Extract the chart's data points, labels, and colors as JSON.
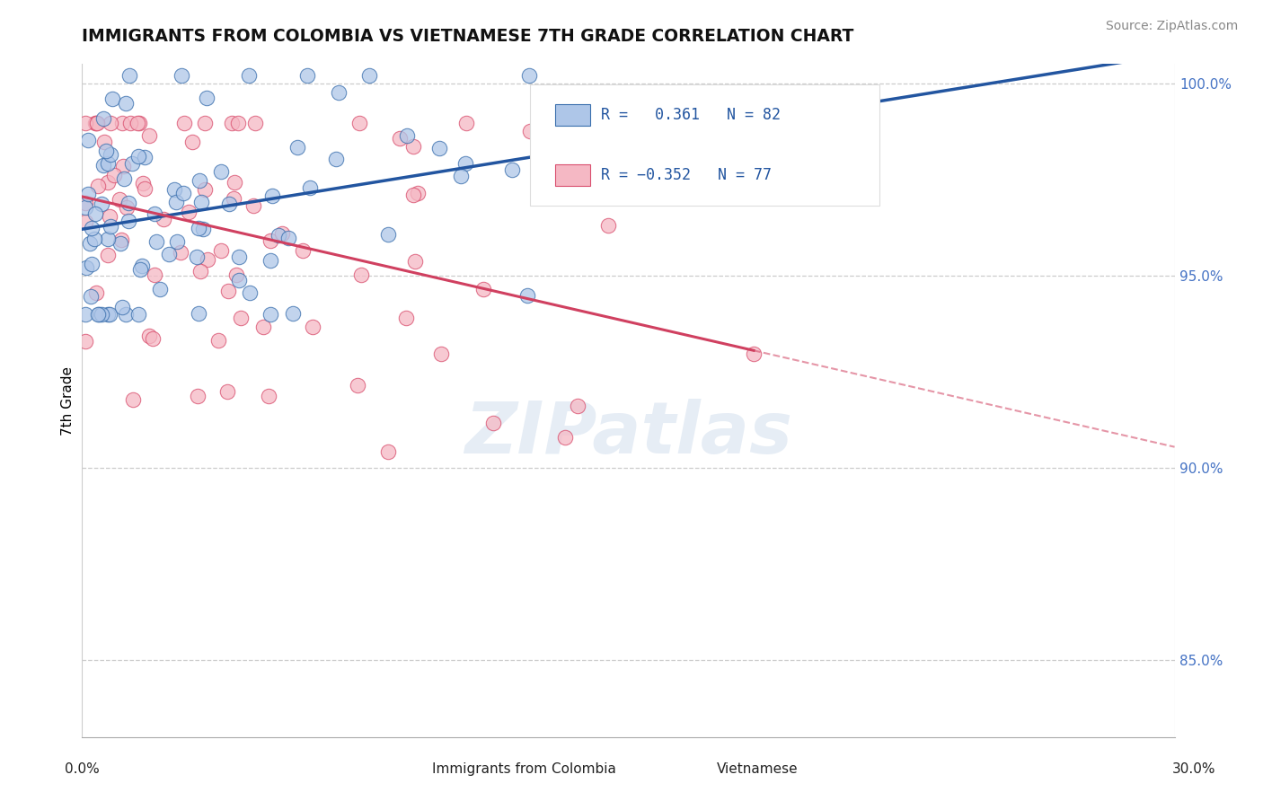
{
  "title": "IMMIGRANTS FROM COLOMBIA VS VIETNAMESE 7TH GRADE CORRELATION CHART",
  "source_text": "Source: ZipAtlas.com",
  "ylabel": "7th Grade",
  "r_colombia": 0.361,
  "n_colombia": 82,
  "r_vietnamese": -0.352,
  "n_vietnamese": 77,
  "xlim": [
    0.0,
    0.3
  ],
  "ylim": [
    0.83,
    1.005
  ],
  "yticks": [
    0.85,
    0.9,
    0.95,
    1.0
  ],
  "ytick_labels": [
    "85.0%",
    "90.0%",
    "95.0%",
    "100.0%"
  ],
  "colombia_color": "#aec6e8",
  "colombia_edge_color": "#3a6fad",
  "vietnamese_color": "#f5b8c4",
  "vietnamese_edge_color": "#d94f6e",
  "trendline_colombia": "#2255a0",
  "trendline_vietnamese": "#d04060",
  "watermark": "ZIPatlas",
  "legend_r_col_text": "R =   0.361   N = 82",
  "legend_r_viet_text": "R = −0.352   N = 77"
}
